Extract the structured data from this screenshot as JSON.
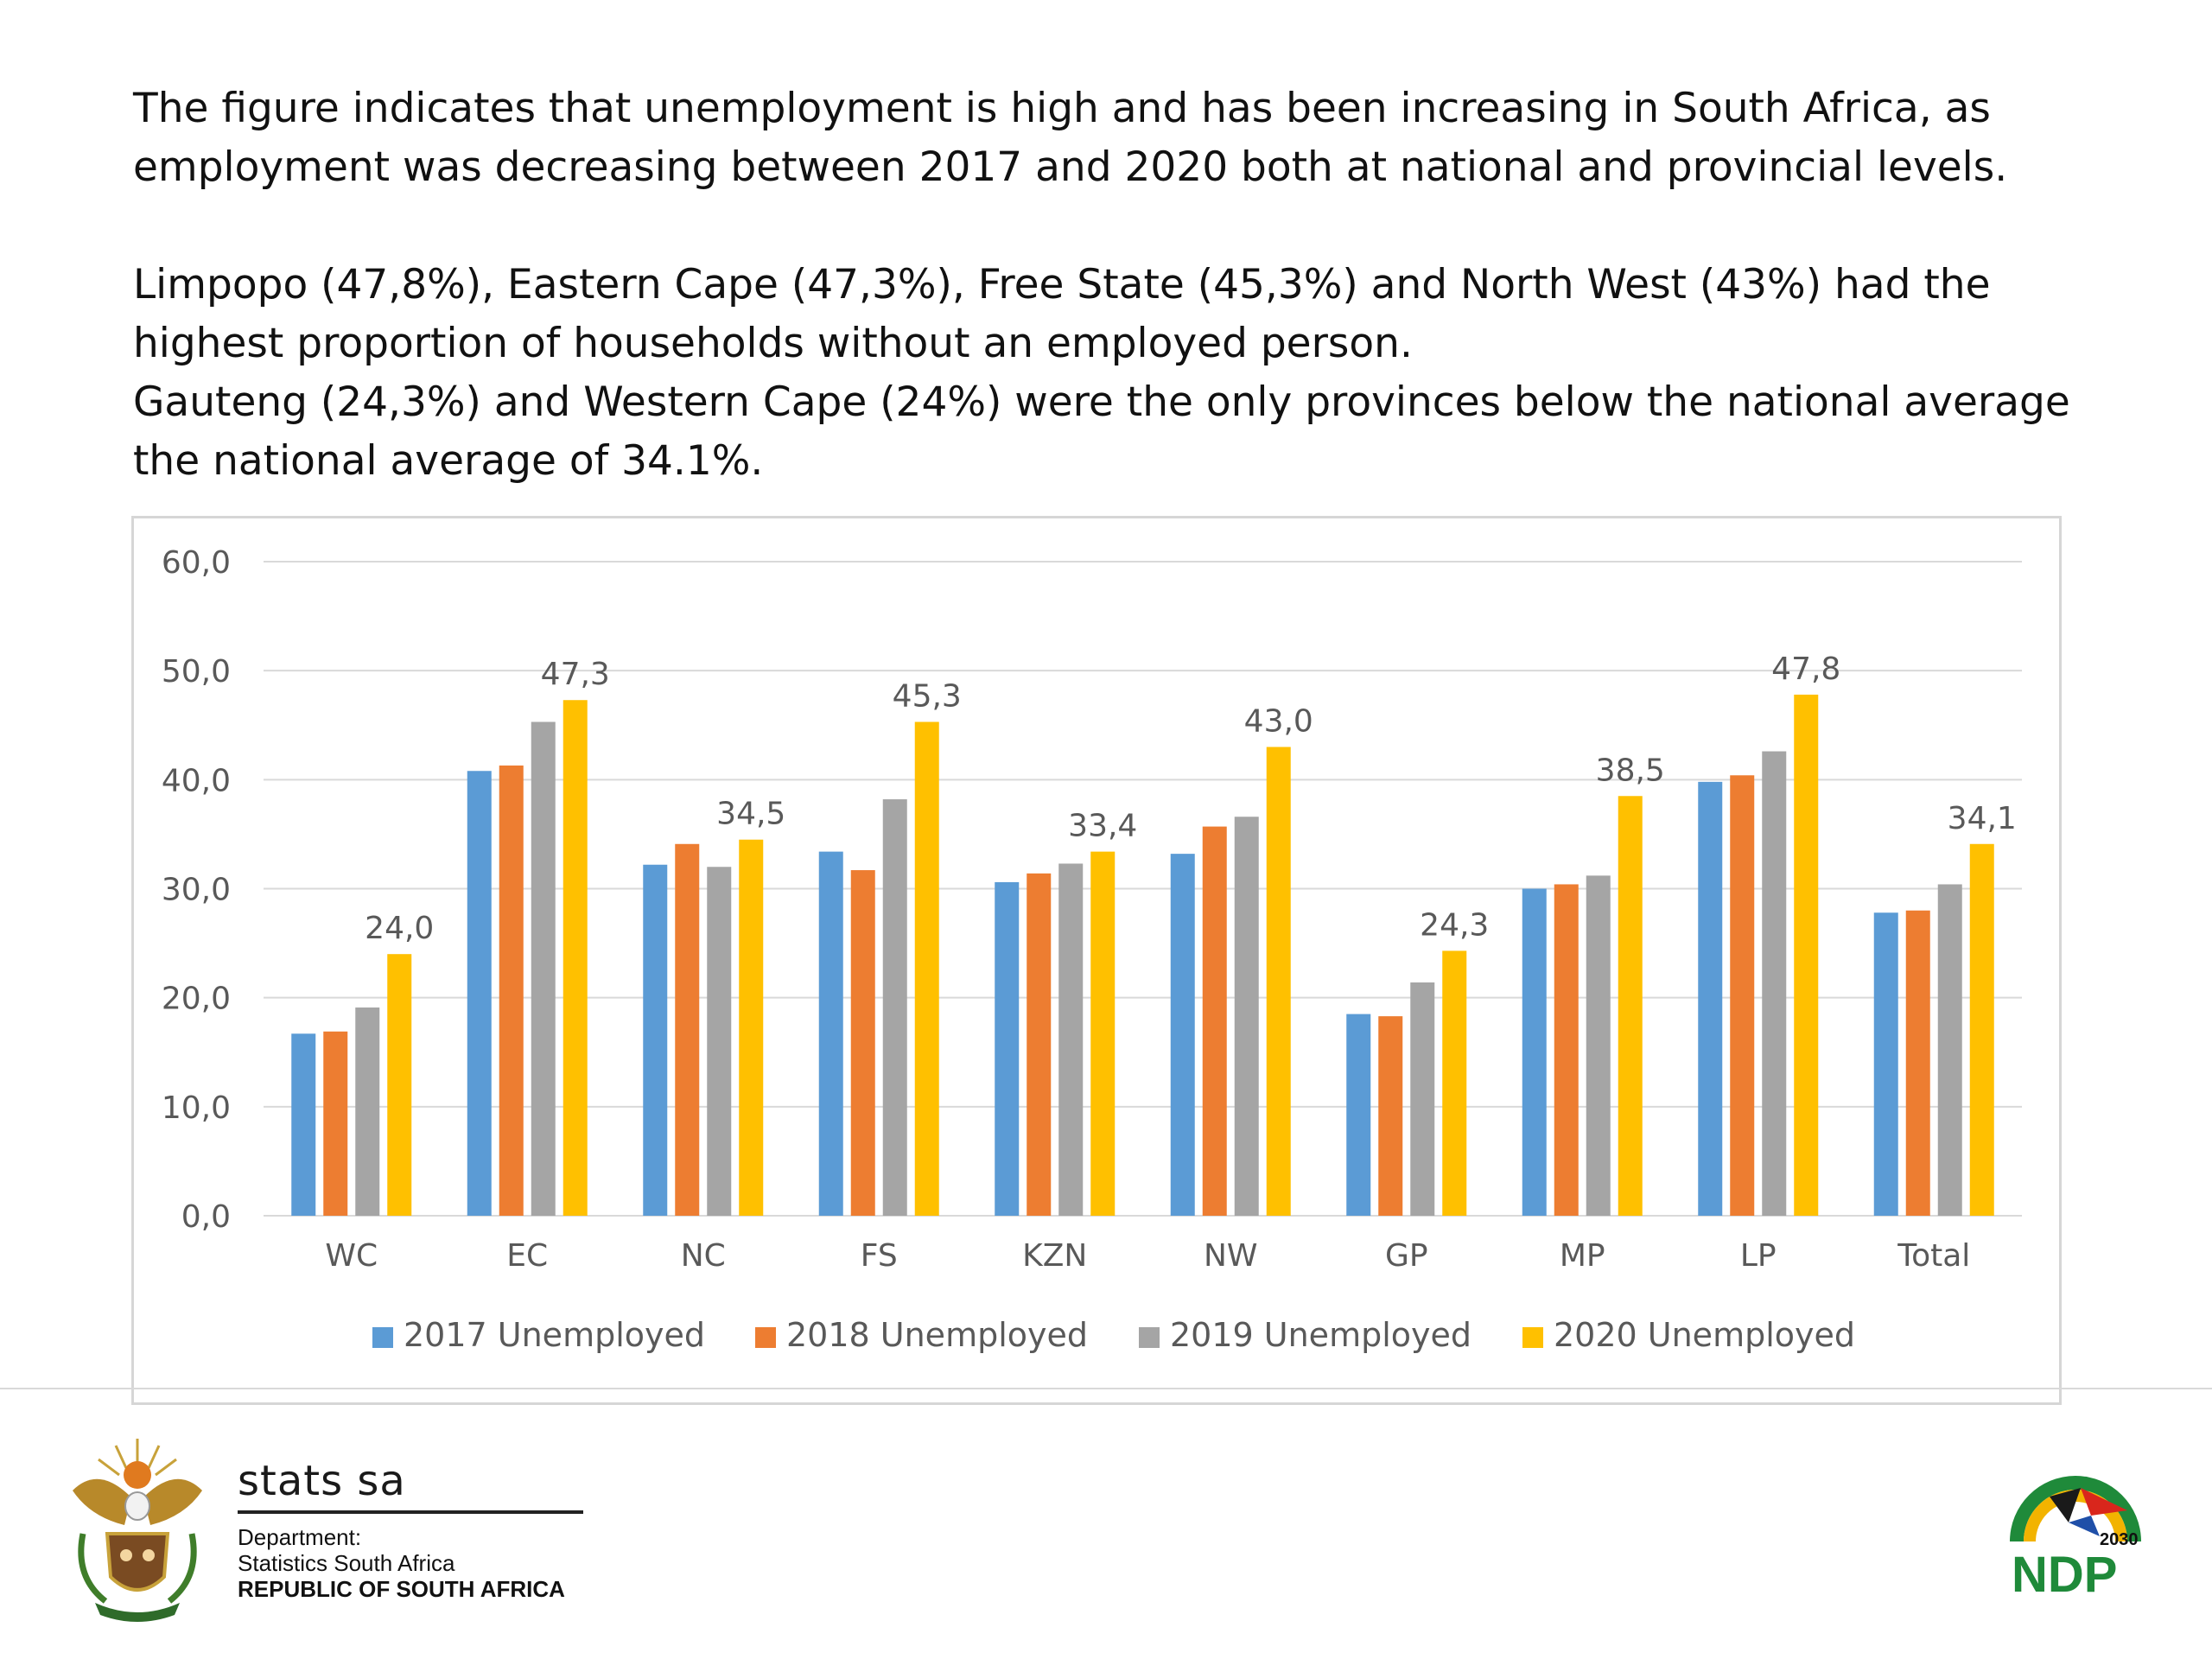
{
  "intro": {
    "paragraph1": "The figure indicates that unemployment is high and has been increasing in South Africa, as employment was decreasing between 2017 and 2020 both at national and provincial levels.",
    "paragraph2": "Limpopo (47,8%), Eastern Cape (47,3%), Free State (45,3%) and North West (43%) had the highest proportion of households without an employed person.",
    "paragraph3": "Gauteng (24,3%) and Western Cape (24%) were the only provinces below the national average the national average of 34.1%."
  },
  "colors": {
    "2017": "#5b9bd5",
    "2018": "#ed7d31",
    "2019": "#a5a5a5",
    "2020": "#ffc000",
    "grid": "#d9d9d9",
    "axis_text": "#595959"
  },
  "chart_data": {
    "type": "bar",
    "title": "",
    "xlabel": "",
    "ylabel": "",
    "ylim": [
      0,
      60
    ],
    "yticks": [
      "0,0",
      "10,0",
      "20,0",
      "30,0",
      "40,0",
      "50,0",
      "60,0"
    ],
    "grid": true,
    "legend_position": "bottom",
    "categories": [
      "WC",
      "EC",
      "NC",
      "FS",
      "KZN",
      "NW",
      "GP",
      "MP",
      "LP",
      "Total"
    ],
    "series": [
      {
        "name": "2017 Unemployed",
        "color_key": "2017",
        "values": [
          16.7,
          40.8,
          32.2,
          33.4,
          30.6,
          33.2,
          18.5,
          30.0,
          39.8,
          27.8
        ]
      },
      {
        "name": "2018 Unemployed",
        "color_key": "2018",
        "values": [
          16.9,
          41.3,
          34.1,
          31.7,
          31.4,
          35.7,
          18.3,
          30.4,
          40.4,
          28.0
        ]
      },
      {
        "name": "2019 Unemployed",
        "color_key": "2019",
        "values": [
          19.1,
          45.3,
          32.0,
          38.2,
          32.3,
          36.6,
          21.4,
          31.2,
          42.6,
          30.4
        ]
      },
      {
        "name": "2020 Unemployed",
        "color_key": "2020",
        "values": [
          24.0,
          47.3,
          34.5,
          45.3,
          33.4,
          43.0,
          24.3,
          38.5,
          47.8,
          34.1
        ],
        "data_labels": [
          "24,0",
          "47,3",
          "34,5",
          "45,3",
          "33,4",
          "43,0",
          "24,3",
          "38,5",
          "47,8",
          "34,1"
        ]
      }
    ]
  },
  "footer": {
    "org_name": "stats sa",
    "dept_label": "Department:",
    "dept_name": "Statistics South Africa",
    "country": "REPUBLIC OF SOUTH AFRICA",
    "ndp_year": "2030",
    "ndp_text": "NDP"
  }
}
